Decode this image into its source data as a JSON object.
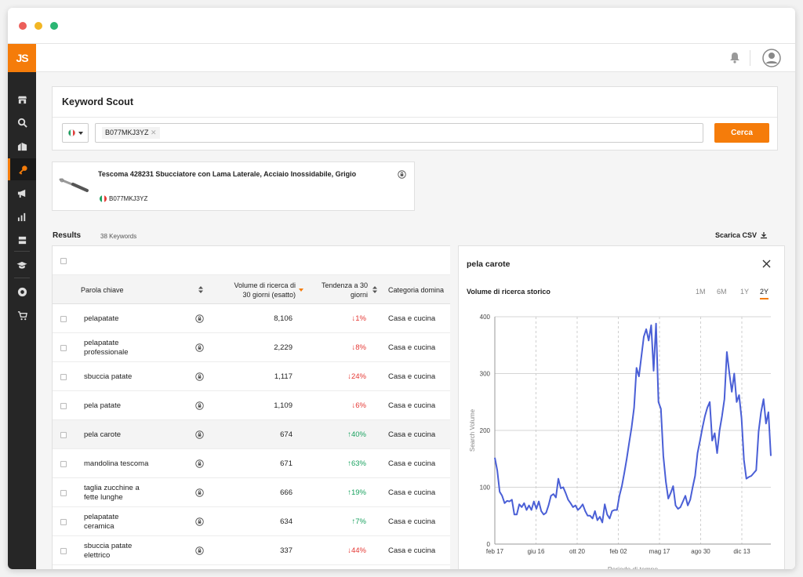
{
  "colors": {
    "accent": "#f57c0a",
    "down": "#e53935",
    "up": "#1aa260",
    "line": "#4a5fd6",
    "sidebar": "#262626"
  },
  "app": {
    "logo": "JS"
  },
  "sidebar": {
    "icons": [
      "store-icon",
      "search-icon",
      "buildings-icon",
      "key-icon",
      "megaphone-icon",
      "bar-chart-icon",
      "graduation-icon",
      "cap-icon",
      "chrome-icon",
      "cart-icon"
    ],
    "active": "key-icon"
  },
  "search": {
    "title": "Keyword Scout",
    "country": "it",
    "chip": "B077MKJ3YZ",
    "button": "Cerca"
  },
  "product": {
    "title": "Tescoma 428231 Sbucciatore con Lama Laterale, Acciaio Inossidabile, Grigio",
    "asin": "B077MKJ3YZ"
  },
  "results": {
    "label": "Results",
    "count": "38 Keywords",
    "download": "Scarica CSV"
  },
  "table": {
    "headers": {
      "keyword": "Parola chiave",
      "volume_l1": "Volume di ricerca di",
      "volume_l2": "30 giorni (esatto)",
      "trend_l1": "Tendenza a 30",
      "trend_l2": "giorni",
      "category": "Categoria domina"
    },
    "rows": [
      {
        "kw1": "pelapatate",
        "kw2": "",
        "volume": "8,106",
        "trend": "1%",
        "dir": "down",
        "category": "Casa e cucina"
      },
      {
        "kw1": "pelapatate",
        "kw2": "professionale",
        "volume": "2,229",
        "trend": "8%",
        "dir": "down",
        "category": "Casa e cucina"
      },
      {
        "kw1": "sbuccia patate",
        "kw2": "",
        "volume": "1,117",
        "trend": "24%",
        "dir": "down",
        "category": "Casa e cucina"
      },
      {
        "kw1": "pela patate",
        "kw2": "",
        "volume": "1,109",
        "trend": "6%",
        "dir": "down",
        "category": "Casa e cucina"
      },
      {
        "kw1": "pela carote",
        "kw2": "",
        "volume": "674",
        "trend": "40%",
        "dir": "up",
        "category": "Casa e cucina",
        "selected": true
      },
      {
        "kw1": "mandolina tescoma",
        "kw2": "",
        "volume": "671",
        "trend": "63%",
        "dir": "up",
        "category": "Casa e cucina"
      },
      {
        "kw1": "taglia zucchine a",
        "kw2": "fette lunghe",
        "volume": "666",
        "trend": "19%",
        "dir": "up",
        "category": "Casa e cucina"
      },
      {
        "kw1": "pelapatate",
        "kw2": "ceramica",
        "volume": "634",
        "trend": "7%",
        "dir": "up",
        "category": "Casa e cucina"
      },
      {
        "kw1": "sbuccia patate",
        "kw2": "elettrico",
        "volume": "337",
        "trend": "44%",
        "dir": "down",
        "category": "Casa e cucina"
      }
    ]
  },
  "panel": {
    "keyword": "pela carote",
    "subtitle": "Volume di ricerca storico",
    "tabs": [
      "1M",
      "6M",
      "1Y",
      "2Y"
    ],
    "active_tab": "2Y"
  },
  "chart_data": {
    "type": "line",
    "title": "",
    "xlabel": "Periodo di tempo",
    "ylabel": "Search Volume",
    "ylim": [
      0,
      400
    ],
    "yticks": [
      0,
      100,
      200,
      300,
      400
    ],
    "xtick_labels": [
      "feb 17",
      "giu 16",
      "ott 20",
      "feb 02",
      "mag 17",
      "ago 30",
      "dic 13"
    ],
    "grid": true,
    "series": [
      {
        "values": [
          152,
          130,
          92,
          85,
          72,
          76,
          75,
          78,
          52,
          52,
          70,
          65,
          72,
          60,
          68,
          60,
          75,
          62,
          75,
          58,
          52,
          55,
          68,
          85,
          88,
          82,
          115,
          98,
          100,
          90,
          78,
          72,
          65,
          68,
          60,
          64,
          70,
          58,
          50,
          50,
          45,
          58,
          42,
          48,
          38,
          70,
          52,
          45,
          58,
          60,
          60,
          85,
          102,
          125,
          150,
          178,
          205,
          240,
          310,
          295,
          330,
          365,
          378,
          358,
          385,
          305,
          388,
          250,
          238,
          155,
          110,
          80,
          90,
          102,
          68,
          62,
          65,
          75,
          85,
          68,
          78,
          100,
          120,
          160,
          182,
          205,
          225,
          240,
          250,
          182,
          195,
          160,
          200,
          225,
          255,
          338,
          302,
          268,
          300,
          250,
          262,
          222,
          148,
          115,
          118,
          120,
          125,
          130,
          198,
          232,
          255,
          212,
          232,
          155
        ]
      }
    ]
  }
}
